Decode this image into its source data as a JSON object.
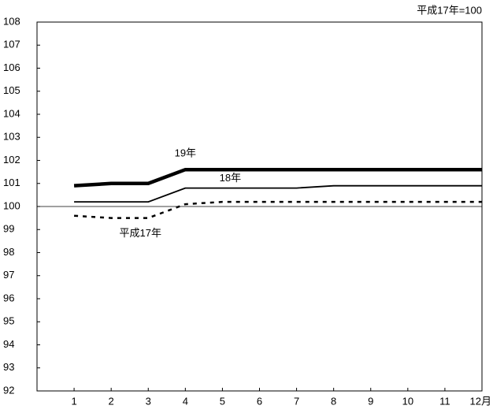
{
  "chart_data": {
    "type": "line",
    "annotation": "平成17年=100",
    "categories": [
      "1",
      "2",
      "3",
      "4",
      "5",
      "6",
      "7",
      "8",
      "9",
      "10",
      "11",
      "12月"
    ],
    "series": [
      {
        "name": "19年",
        "color": "#000000",
        "values": [
          100.9,
          101.0,
          101.0,
          101.6,
          101.6,
          101.6,
          101.6,
          101.6,
          101.6,
          101.6,
          101.6,
          101.6
        ]
      },
      {
        "name": "18年",
        "color": "#000000",
        "values": [
          100.2,
          100.2,
          100.2,
          100.8,
          100.8,
          100.8,
          100.8,
          100.9,
          100.9,
          100.9,
          100.9,
          100.9
        ]
      },
      {
        "name": "平成17年",
        "color": "#000000",
        "values": [
          99.6,
          99.5,
          99.5,
          100.1,
          100.2,
          100.2,
          100.2,
          100.2,
          100.2,
          100.2,
          100.2,
          100.2
        ]
      }
    ],
    "reference_line": 100,
    "ylim": [
      92,
      108
    ],
    "yticks": [
      92,
      93,
      94,
      95,
      96,
      97,
      98,
      99,
      100,
      101,
      102,
      103,
      104,
      105,
      106,
      107,
      108
    ]
  }
}
